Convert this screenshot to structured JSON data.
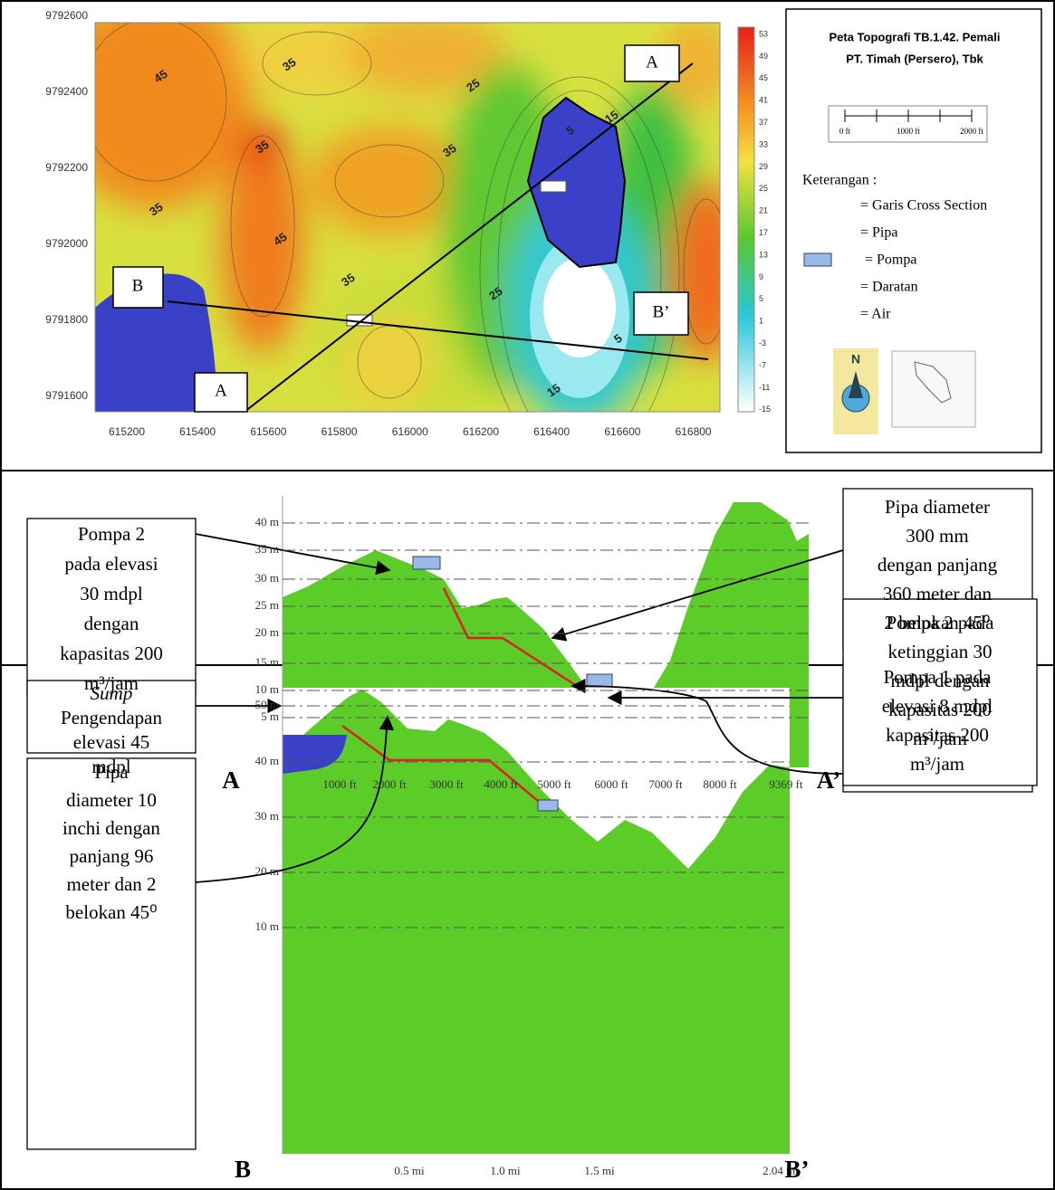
{
  "map": {
    "yticks": [
      "9792600",
      "9792400",
      "9792200",
      "9792000",
      "9791800",
      "9791600"
    ],
    "xticks": [
      "615200",
      "615400",
      "615600",
      "615800",
      "616000",
      "616200",
      "616400",
      "616600",
      "616800"
    ],
    "contour_labels": [
      "45",
      "35",
      "35",
      "35",
      "45",
      "35",
      "35",
      "25",
      "25",
      "15",
      "15",
      "5",
      "5"
    ],
    "colorbar": [
      "53",
      "49",
      "45",
      "41",
      "37",
      "33",
      "29",
      "25",
      "21",
      "17",
      "13",
      "9",
      "5",
      "1",
      "-3",
      "-7",
      "-11",
      "-15"
    ],
    "section_labels": [
      "A",
      "A",
      "B",
      "B’"
    ]
  },
  "legend": {
    "title": [
      "Peta Topografi TB.1.42. Pemali",
      "PT. Timah (Persero), Tbk"
    ],
    "scale": [
      "0 ft",
      "1000 ft",
      "2000 ft"
    ],
    "keterangan": "Keterangan :",
    "items": [
      "= Garis Cross Section",
      "= Pipa",
      "= Pompa",
      "= Daratan",
      "= Air"
    ],
    "north": "N"
  },
  "section_a": {
    "yticks": [
      "40 m",
      "35 m",
      "30 m",
      "25 m",
      "20 m",
      "15 m",
      "10 m",
      "5 m"
    ],
    "xticks": [
      "1000 ft",
      "2000 ft",
      "3000 ft",
      "4000 ft",
      "5000 ft",
      "6000 ft",
      "7000 ft",
      "8000 ft",
      "9369 ft"
    ],
    "start": "A",
    "end": "A’",
    "callouts": [
      [
        "Pompa 2",
        "pada elevasi",
        "30 mdpl",
        "dengan",
        "kapasitas 200",
        "m³/jam"
      ],
      [
        "Pipa diameter",
        "300 mm",
        "dengan panjang",
        "360 meter dan",
        "2 belokan 45⁰"
      ],
      [
        "Pompa 1 pada",
        "elevasi 8 mdpl",
        "kapasitas 200",
        "m³/jam"
      ]
    ]
  },
  "section_b": {
    "yticks": [
      "50 m",
      "40 m",
      "30 m",
      "20 m",
      "10 m"
    ],
    "xticks": [
      "0.5 mi",
      "1.0 mi",
      "1.5 mi",
      "2.04 mi"
    ],
    "start": "B",
    "end": "B’",
    "callouts": [
      [
        "Sump",
        "Pengendapan",
        "elevasi 45",
        "mdpl"
      ],
      [
        "Pipa",
        "diameter 10",
        "inchi dengan",
        "panjang 96",
        "meter dan 2",
        "belokan 45⁰"
      ],
      [
        "Pompa 2 pada",
        "ketinggian 30",
        "mdpl dengan",
        "kapasitas 200",
        "m³/jam"
      ]
    ]
  }
}
